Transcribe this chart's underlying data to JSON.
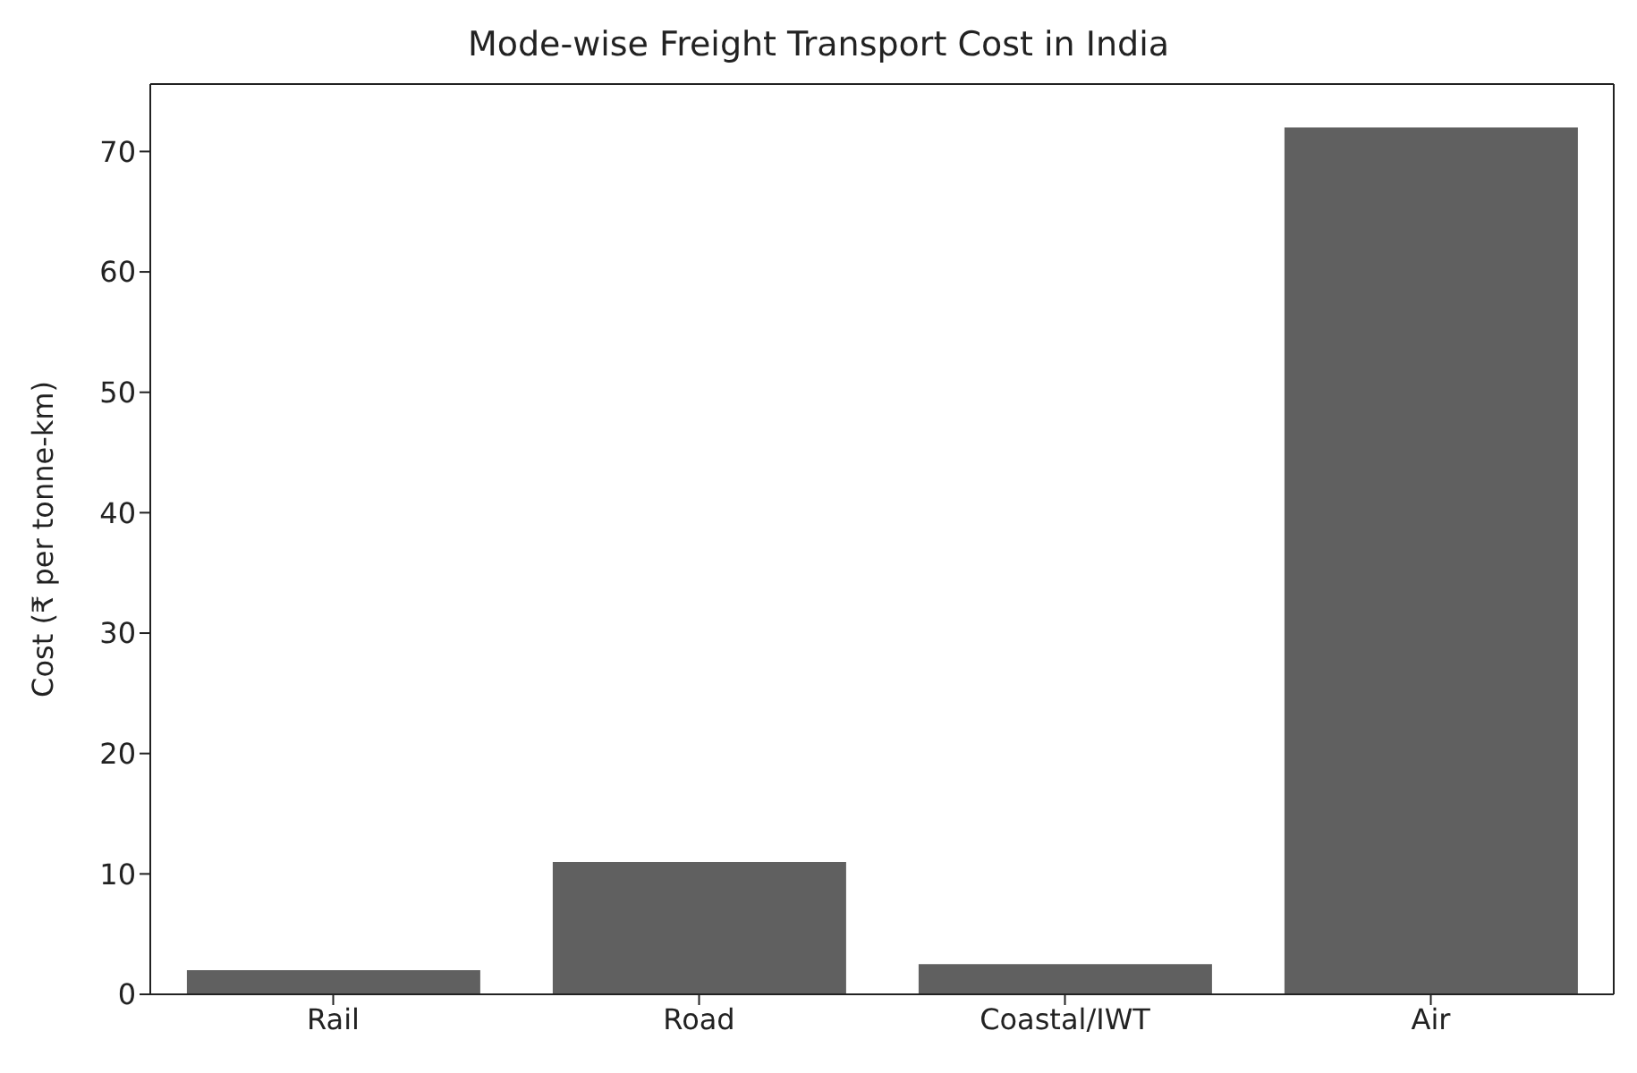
{
  "chart_data": {
    "type": "bar",
    "title": "Mode-wise Freight Transport Cost in India",
    "ylabel": "Cost (₹ per tonne-km)",
    "categories": [
      "Rail",
      "Road",
      "Coastal/IWT",
      "Air"
    ],
    "values": [
      2.0,
      11,
      2.5,
      72
    ],
    "color": "#606060",
    "ylim": [
      0,
      75.6
    ],
    "yticks": [
      0,
      10,
      20,
      30,
      40,
      50,
      60,
      70
    ],
    "grid": false,
    "legend": false
  }
}
